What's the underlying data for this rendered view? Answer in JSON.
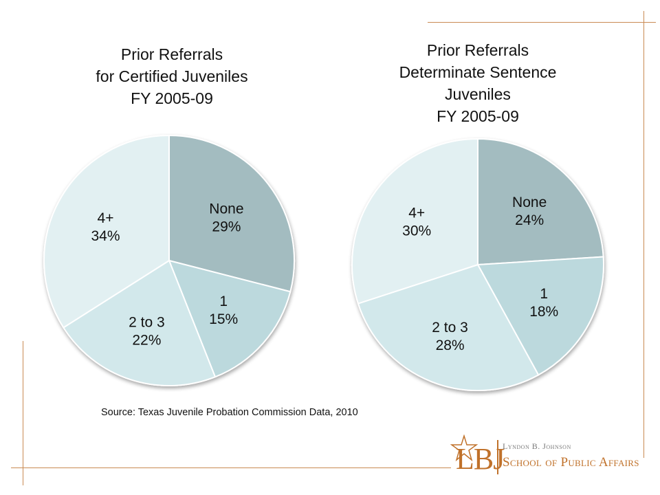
{
  "chart_data": [
    {
      "type": "pie",
      "title": [
        "Prior Referrals",
        "for Certified Juveniles",
        "FY 2005-09"
      ],
      "slices": [
        {
          "label": "None",
          "value": 29,
          "value_label": "29%",
          "color": "#a3bcc0"
        },
        {
          "label": "1",
          "value": 15,
          "value_label": "15%",
          "color": "#bcd9dd"
        },
        {
          "label": "2 to 3",
          "value": 22,
          "value_label": "22%",
          "color": "#d2e8eb"
        },
        {
          "label": "4+",
          "value": 34,
          "value_label": "34%",
          "color": "#e2f0f2"
        }
      ]
    },
    {
      "type": "pie",
      "title": [
        "Prior Referrals",
        "Determinate Sentence",
        "Juveniles",
        "FY 2005-09"
      ],
      "slices": [
        {
          "label": "None",
          "value": 24,
          "value_label": "24%",
          "color": "#a3bcc0"
        },
        {
          "label": "1",
          "value": 18,
          "value_label": "18%",
          "color": "#bcd9dd"
        },
        {
          "label": "2 to 3",
          "value": 28,
          "value_label": "28%",
          "color": "#d2e8eb"
        },
        {
          "label": "4+",
          "value": 30,
          "value_label": "30%",
          "color": "#e2f0f2"
        }
      ]
    }
  ],
  "source": "Source:  Texas Juvenile Probation Commission Data, 2010",
  "logo": {
    "initials": "LBJ",
    "line1": "Lyndon B. Johnson",
    "line2": "School of Public Affairs"
  },
  "colors": {
    "rule": "#c98a52",
    "logo": "#c0712a"
  }
}
